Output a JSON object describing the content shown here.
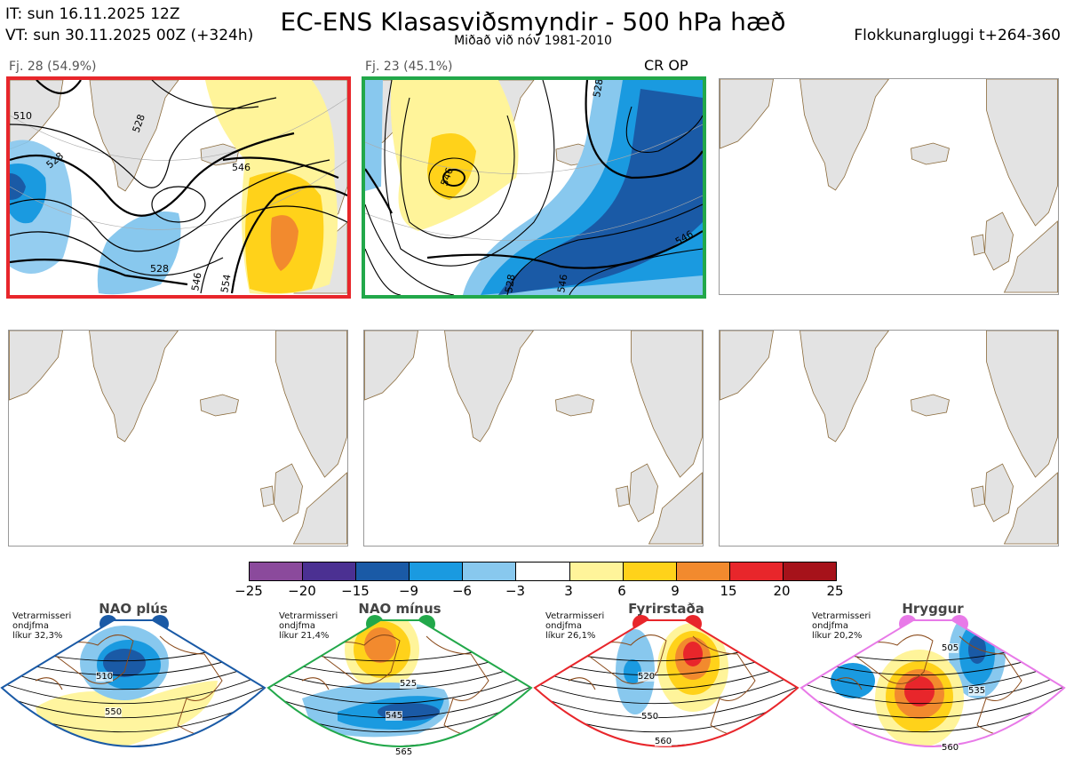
{
  "header": {
    "it_line": "IT: sun 16.11.2025 12Z",
    "vt_line": "VT: sun 30.11.2025 00Z  (+324h)",
    "title": "EC-ENS Klasasviðsmyndir - 500 hPa hæð",
    "subtitle": "Miðað við nóv 1981-2010",
    "window": "Flokkunargluggi t+264-360"
  },
  "clusters": [
    {
      "label": "Fj. 28 (54.9%)",
      "frame_color": "#e8262b",
      "contour_labels": [
        "510",
        "528",
        "528",
        "546",
        "528",
        "546",
        "554"
      ]
    },
    {
      "label": "Fj. 23 (45.1%)",
      "frame_color": "#22a84a",
      "tag": "CR OP",
      "contour_labels": [
        "528",
        "546",
        "528",
        "546",
        "546"
      ]
    }
  ],
  "colorbar": {
    "ticks": [
      "−25",
      "−20",
      "−15",
      "−9",
      "−6",
      "−3",
      "3",
      "6",
      "9",
      "15",
      "20",
      "25"
    ],
    "colors": [
      "#8b4a9c",
      "#4b3092",
      "#1a5aa6",
      "#1a9ae0",
      "#88c8ee",
      "#ffffff",
      "#fff49a",
      "#ffd21a",
      "#f28a2e",
      "#e8262b",
      "#a6121a"
    ]
  },
  "regimes": [
    {
      "name": "NAO plús",
      "info": [
        "Vetrarmisseri",
        "ondjfma",
        "líkur 32,3%"
      ],
      "color": "#1a5aa6",
      "labels": [
        "510",
        "550"
      ]
    },
    {
      "name": "NAO mínus",
      "info": [
        "Vetrarmisseri",
        "ondjfma",
        "líkur 21,4%"
      ],
      "color": "#22a84a",
      "labels": [
        "525",
        "545",
        "565"
      ]
    },
    {
      "name": "Fyrirstaða",
      "info": [
        "Vetrarmisseri",
        "ondjfma",
        "líkur 26,1%"
      ],
      "color": "#e8262b",
      "labels": [
        "520",
        "550",
        "560"
      ]
    },
    {
      "name": "Hryggur",
      "info": [
        "Vetrarmisseri",
        "ondjfma",
        "líkur 20,2%"
      ],
      "color": "#e87ae8",
      "labels": [
        "505",
        "535",
        "560"
      ]
    }
  ]
}
